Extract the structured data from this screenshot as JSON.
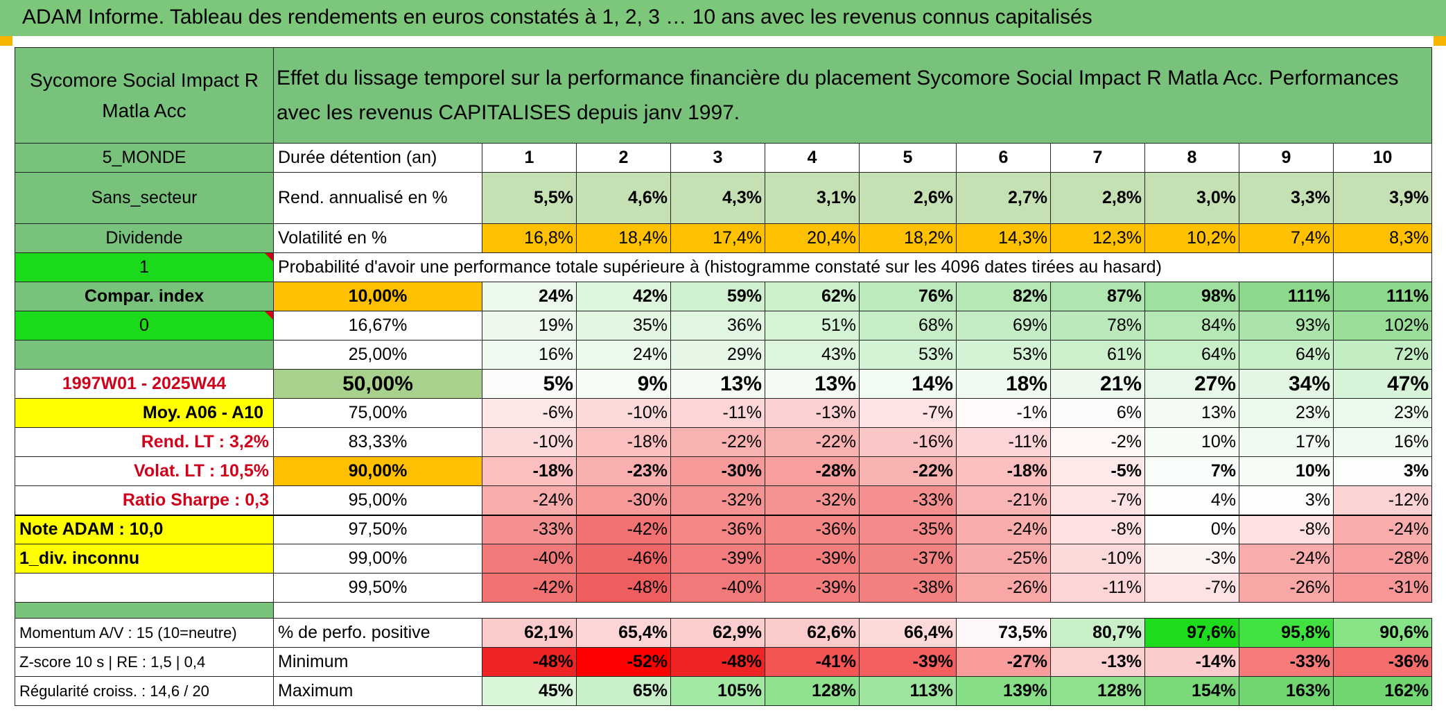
{
  "banner_title": "ADAM Informe. Tableau des rendements en euros constatés à 1, 2, 3 … 10 ans avec les revenus connus capitalisés",
  "fund_name": "Sycomore Social Impact R Matla Acc",
  "description": "Effet du lissage temporel sur la performance financière du placement Sycomore Social Impact R Matla Acc. Performances avec les revenus CAPITALISES depuis janv 1997.",
  "region": "5_MONDE",
  "sector": "Sans_secteur",
  "income_type": "Dividende",
  "flag_one": "1",
  "compar_label": "Compar. index",
  "flag_zero": "0",
  "period": "1997W01 - 2025W44",
  "moy_label": "Moy. A06 - A10",
  "rend_lt": "Rend. LT :   3,2%",
  "volat_lt": "Volat. LT :   10,5%",
  "sharpe": "Ratio Sharpe :   0,3",
  "note_adam": "Note ADAM : 10,0",
  "div_status": "1_div. inconnu",
  "momentum": "Momentum A/V : 15 (10=neutre)",
  "zscore": "Z-score 10 s | RE : 1,5 | 0,4",
  "regularite": "Régularité croiss. : 14,6 / 20",
  "durations_label": "Durée détention (an)",
  "durations": [
    "1",
    "2",
    "3",
    "4",
    "5",
    "6",
    "7",
    "8",
    "9",
    "10"
  ],
  "rend_label": "Rend. annualisé en %",
  "rend_values": [
    "5,5%",
    "4,6%",
    "4,3%",
    "3,1%",
    "2,6%",
    "2,7%",
    "2,8%",
    "3,0%",
    "3,3%",
    "3,9%"
  ],
  "vol_label": "Volatilité en %",
  "vol_values": [
    "16,8%",
    "18,4%",
    "17,4%",
    "20,4%",
    "18,2%",
    "14,3%",
    "12,3%",
    "10,2%",
    "7,4%",
    "8,3%"
  ],
  "vol_colors": [
    "#ffc000",
    "#ffc000",
    "#ffc000",
    "#ffc000",
    "#ffc000",
    "#ffc000",
    "#ffc000",
    "#ffc000",
    "#ffc000",
    "#ffc000"
  ],
  "proba_label": "Probabilité d'avoir une performance totale supérieure à (histogramme constaté sur les 4096 dates tirées au hasard)",
  "quantiles": [
    {
      "label": "10,00%",
      "values": [
        "24%",
        "42%",
        "59%",
        "62%",
        "76%",
        "82%",
        "87%",
        "98%",
        "111%",
        "111%"
      ],
      "colors": [
        "#eaf9ea",
        "#ddf5dd",
        "#cff1cf",
        "#cdf0cd",
        "#bdeabd",
        "#b6e8b6",
        "#afe6af",
        "#9fe09f",
        "#8cd98c",
        "#8cd98c"
      ]
    },
    {
      "label": "16,67%",
      "values": [
        "19%",
        "35%",
        "36%",
        "51%",
        "68%",
        "69%",
        "78%",
        "84%",
        "93%",
        "102%"
      ],
      "colors": [
        "#eef9ee",
        "#e2f6e2",
        "#e1f6e1",
        "#d5f3d5",
        "#c6edc6",
        "#c5edc5",
        "#bce9bc",
        "#b6e8b6",
        "#abe4ab",
        "#99dd99"
      ]
    },
    {
      "label": "25,00%",
      "values": [
        "16%",
        "24%",
        "29%",
        "43%",
        "53%",
        "53%",
        "61%",
        "64%",
        "64%",
        "72%"
      ],
      "colors": [
        "#f1faf1",
        "#eaf9ea",
        "#e6f7e6",
        "#dcf5dc",
        "#d4f2d4",
        "#d4f2d4",
        "#ccf0cc",
        "#c9efc9",
        "#c9efc9",
        "#c2ecc2"
      ]
    },
    {
      "label": "50,00%",
      "values": [
        "5%",
        "9%",
        "13%",
        "13%",
        "14%",
        "18%",
        "21%",
        "27%",
        "34%",
        "47%"
      ],
      "colors": [
        "#fafdfa",
        "#f7fcf7",
        "#f3fbf3",
        "#f3fbf3",
        "#f2fbf2",
        "#eff9ef",
        "#ecf9ec",
        "#e8f8e8",
        "#e3f6e3",
        "#d8f4d8"
      ]
    },
    {
      "label": "75,00%",
      "values": [
        "-6%",
        "-10%",
        "-11%",
        "-13%",
        "-7%",
        "-1%",
        "6%",
        "13%",
        "23%",
        "23%"
      ],
      "colors": [
        "#fde6e6",
        "#fddada",
        "#fcd6d6",
        "#fcd0d0",
        "#fde3e3",
        "#fff9f9",
        "#fafdfa",
        "#f3fbf3",
        "#eaf9ea",
        "#eaf9ea"
      ]
    },
    {
      "label": "83,33%",
      "values": [
        "-10%",
        "-18%",
        "-22%",
        "-22%",
        "-16%",
        "-11%",
        "-2%",
        "10%",
        "17%",
        "16%"
      ],
      "colors": [
        "#fddada",
        "#fbbfbf",
        "#f9b2b2",
        "#f9b2b2",
        "#fbc6c6",
        "#fcd6d6",
        "#fff6f6",
        "#f6fcf6",
        "#f0faf0",
        "#f1faf1"
      ]
    },
    {
      "label": "90,00%",
      "values": [
        "-18%",
        "-23%",
        "-30%",
        "-28%",
        "-22%",
        "-18%",
        "-5%",
        "7%",
        "10%",
        "3%"
      ],
      "colors": [
        "#fbbfbf",
        "#f9afaf",
        "#f69999",
        "#f79f9f",
        "#f9b2b2",
        "#fbbfbf",
        "#fee9e9",
        "#f9fdf9",
        "#f6fcf6",
        "#fcfefc"
      ]
    },
    {
      "label": "95,00%",
      "values": [
        "-24%",
        "-30%",
        "-32%",
        "-32%",
        "-33%",
        "-21%",
        "-7%",
        "4%",
        "3%",
        "-12%"
      ],
      "colors": [
        "#f8acac",
        "#f69999",
        "#f59393",
        "#f59393",
        "#f59090",
        "#f9b5b5",
        "#fde3e3",
        "#fbfefb",
        "#fcfefc",
        "#fcd3d3"
      ]
    },
    {
      "label": "97,50%",
      "values": [
        "-33%",
        "-42%",
        "-36%",
        "-36%",
        "-35%",
        "-24%",
        "-8%",
        "0%",
        "-8%",
        "-24%"
      ],
      "colors": [
        "#f59090",
        "#f27272",
        "#f48686",
        "#f48686",
        "#f48989",
        "#f8acac",
        "#fde0e0",
        "#ffffff",
        "#fde0e0",
        "#f8acac"
      ]
    },
    {
      "label": "99,00%",
      "values": [
        "-40%",
        "-46%",
        "-39%",
        "-39%",
        "-37%",
        "-25%",
        "-10%",
        "-3%",
        "-24%",
        "-28%"
      ],
      "colors": [
        "#f27979",
        "#f06565",
        "#f37c7c",
        "#f37c7c",
        "#f38383",
        "#f8a9a9",
        "#fddada",
        "#fef3f3",
        "#f8acac",
        "#f79f9f"
      ]
    },
    {
      "label": "99,50%",
      "values": [
        "-42%",
        "-48%",
        "-40%",
        "-39%",
        "-38%",
        "-26%",
        "-11%",
        "-7%",
        "-26%",
        "-31%"
      ],
      "colors": [
        "#f27272",
        "#ef5e5e",
        "#f27979",
        "#f37c7c",
        "#f38080",
        "#f8a6a6",
        "#fcd6d6",
        "#fde3e3",
        "#f8a6a6",
        "#f69696"
      ]
    }
  ],
  "perfo_label": "% de perfo. positive",
  "perfo_values": [
    "62,1%",
    "65,4%",
    "62,9%",
    "62,6%",
    "66,4%",
    "73,5%",
    "80,7%",
    "97,6%",
    "95,8%",
    "90,6%"
  ],
  "perfo_colors": [
    "#fbcaca",
    "#fcd6d6",
    "#fbcdcd",
    "#fbcbcb",
    "#fcd9d9",
    "#fef7f7",
    "#c8efc8",
    "#1edb1e",
    "#40e140",
    "#86e486"
  ],
  "min_label": "Minimum",
  "min_values": [
    "-48%",
    "-52%",
    "-48%",
    "-41%",
    "-39%",
    "-27%",
    "-13%",
    "-14%",
    "-33%",
    "-36%"
  ],
  "min_colors": [
    "#ef2424",
    "#ff0000",
    "#ef2424",
    "#f35454",
    "#f46060",
    "#f99c9c",
    "#fdd0d0",
    "#fccbcb",
    "#f67a7a",
    "#f46c6c"
  ],
  "max_label": "Maximum",
  "max_values": [
    "45%",
    "65%",
    "105%",
    "128%",
    "113%",
    "139%",
    "128%",
    "154%",
    "163%",
    "162%"
  ],
  "max_colors": [
    "#d9f6d9",
    "#c8f0c8",
    "#a3e8a3",
    "#8fe18f",
    "#9de59d",
    "#86de86",
    "#8fe18f",
    "#79d979",
    "#70d570",
    "#71d671"
  ]
}
